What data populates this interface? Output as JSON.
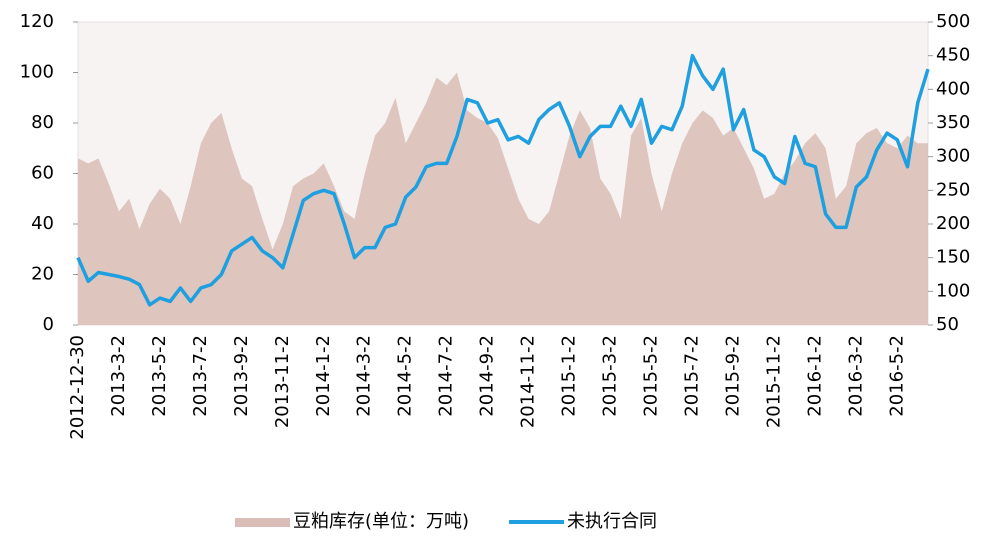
{
  "chart_data": {
    "type": "area-line",
    "categories": [
      "2012-12-30",
      null,
      null,
      null,
      "2013-3-2",
      null,
      null,
      null,
      "2013-5-2",
      null,
      null,
      null,
      "2013-7-2",
      null,
      null,
      null,
      "2013-9-2",
      null,
      null,
      null,
      "2013-11-2",
      null,
      null,
      null,
      "2014-1-2",
      null,
      null,
      null,
      "2014-3-2",
      null,
      null,
      null,
      "2014-5-2",
      null,
      null,
      null,
      "2014-7-2",
      null,
      null,
      null,
      "2014-9-2",
      null,
      null,
      null,
      "2014-11-2",
      null,
      null,
      null,
      "2015-1-2",
      null,
      null,
      null,
      "2015-3-2",
      null,
      null,
      null,
      "2015-5-2",
      null,
      null,
      null,
      "2015-7-2",
      null,
      null,
      null,
      "2015-9-2",
      null,
      null,
      null,
      "2015-11-2",
      null,
      null,
      null,
      "2016-1-2",
      null,
      null,
      null,
      "2016-3-2",
      null,
      null,
      null,
      "2016-5-2",
      null,
      null,
      null
    ],
    "series": [
      {
        "name": "豆粕库存(单位：万吨)",
        "kind": "area",
        "color": "#d9bdb6",
        "values": [
          66,
          64,
          66,
          56,
          45,
          50,
          38,
          48,
          54,
          50,
          40,
          55,
          72,
          80,
          84,
          70,
          58,
          55,
          42,
          30,
          40,
          55,
          58,
          60,
          64,
          55,
          45,
          42,
          60,
          75,
          80,
          90,
          72,
          80,
          88,
          98,
          95,
          100,
          85,
          82,
          80,
          74,
          62,
          50,
          42,
          40,
          45,
          60,
          75,
          85,
          78,
          58,
          52,
          42,
          75,
          82,
          60,
          45,
          60,
          72,
          80,
          85,
          82,
          75,
          78,
          70,
          62,
          50,
          52,
          60,
          65,
          72,
          76,
          70,
          50,
          55,
          72,
          76,
          78,
          72,
          70,
          75,
          72,
          72
        ]
      },
      {
        "name": "未执行合同",
        "kind": "line",
        "axis": "y2",
        "color": "#1e9fe0",
        "values": [
          150,
          115,
          128,
          125,
          122,
          118,
          110,
          80,
          90,
          85,
          105,
          85,
          105,
          110,
          125,
          160,
          170,
          180,
          160,
          150,
          135,
          185,
          235,
          245,
          250,
          245,
          200,
          150,
          165,
          165,
          195,
          200,
          240,
          255,
          285,
          290,
          290,
          330,
          385,
          380,
          350,
          355,
          325,
          330,
          320,
          355,
          370,
          380,
          345,
          300,
          330,
          345,
          345,
          375,
          345,
          385,
          320,
          345,
          340,
          375,
          450,
          420,
          400,
          430,
          340,
          370,
          310,
          300,
          270,
          260,
          330,
          290,
          285,
          215,
          195,
          195,
          255,
          270,
          310,
          335,
          325,
          285,
          380,
          430
        ]
      }
    ],
    "ylim": [
      0,
      120
    ],
    "yticks": [
      0,
      20,
      40,
      60,
      80,
      100,
      120
    ],
    "y2lim": [
      50,
      500
    ],
    "y2ticks": [
      50,
      100,
      150,
      200,
      250,
      300,
      350,
      400,
      450,
      500
    ]
  }
}
